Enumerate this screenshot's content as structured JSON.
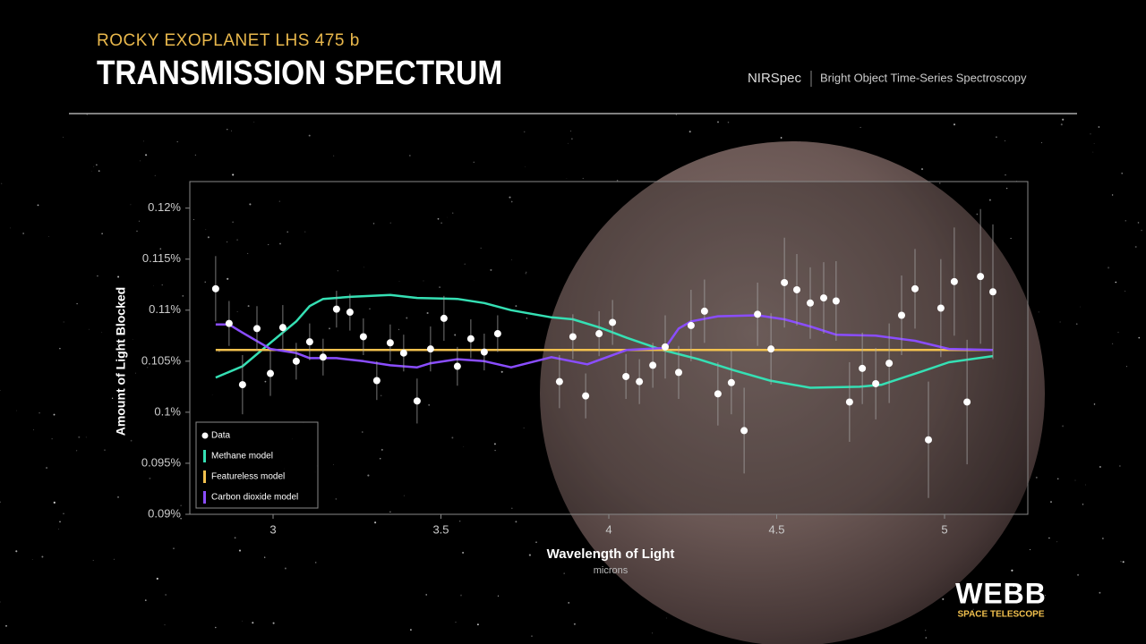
{
  "chart_data": {
    "type": "scatter",
    "subtitle": "ROCKY EXOPLANET LHS 475 b",
    "title": "TRANSMISSION SPECTRUM",
    "instrument": "NIRSpec",
    "mode": "Bright Object Time-Series Spectroscopy",
    "xlabel": "Wavelength of Light",
    "xunit": "microns",
    "ylabel": "Amount of Light Blocked",
    "xlim": [
      2.752,
      5.248
    ],
    "xticks": [
      3,
      3.5,
      4,
      4.5,
      5
    ],
    "ylim": [
      0.09,
      0.1226
    ],
    "yticks": [
      {
        "value": 0.09,
        "label": "0.09%"
      },
      {
        "value": 0.095,
        "label": "0.095%"
      },
      {
        "value": 0.1,
        "label": "0.1%"
      },
      {
        "value": 0.105,
        "label": "0.105%"
      },
      {
        "value": 0.11,
        "label": "0.11%"
      },
      {
        "value": 0.115,
        "label": "0.115%"
      },
      {
        "value": 0.12,
        "label": "0.12%"
      }
    ],
    "legend": "lower left",
    "series": [
      {
        "name": "Data",
        "type": "scatter",
        "color": "#ffffff",
        "x": [
          2.829,
          2.869,
          2.909,
          2.952,
          2.992,
          3.029,
          3.069,
          3.109,
          3.149,
          3.189,
          3.229,
          3.269,
          3.309,
          3.349,
          3.389,
          3.429,
          3.469,
          3.509,
          3.549,
          3.589,
          3.629,
          3.669,
          3.853,
          3.893,
          3.931,
          3.971,
          4.011,
          4.051,
          4.091,
          4.131,
          4.168,
          4.208,
          4.245,
          4.285,
          4.325,
          4.365,
          4.403,
          4.443,
          4.483,
          4.523,
          4.56,
          4.6,
          4.64,
          4.677,
          4.717,
          4.755,
          4.795,
          4.835,
          4.872,
          4.912,
          4.952,
          4.989,
          5.029,
          5.067,
          5.107,
          5.144
        ],
        "values": [
          0.1121,
          0.1087,
          0.1027,
          0.1082,
          0.1038,
          0.1083,
          0.105,
          0.1069,
          0.1054,
          0.1101,
          0.1098,
          0.1074,
          0.1031,
          0.1068,
          0.1058,
          0.1011,
          0.1062,
          0.1092,
          0.1045,
          0.1072,
          0.1059,
          0.1077,
          0.103,
          0.1074,
          0.1016,
          0.1077,
          0.1088,
          0.1035,
          0.103,
          0.1046,
          0.1064,
          0.1039,
          0.1085,
          0.1099,
          0.1018,
          0.1029,
          0.0982,
          0.1096,
          0.1062,
          0.1127,
          0.112,
          0.1107,
          0.1112,
          0.1109,
          0.101,
          0.1043,
          0.1028,
          0.1048,
          0.1095,
          0.1121,
          0.0973,
          0.1102,
          0.1128,
          0.101,
          0.1133,
          0.1118
        ],
        "errors": [
          0.0032,
          0.0022,
          0.0029,
          0.0022,
          0.0022,
          0.0022,
          0.0018,
          0.0018,
          0.0018,
          0.0018,
          0.0018,
          0.0018,
          0.0019,
          0.0018,
          0.0018,
          0.0022,
          0.0022,
          0.0022,
          0.0019,
          0.0019,
          0.0018,
          0.0018,
          0.0026,
          0.0022,
          0.0022,
          0.0022,
          0.0022,
          0.0022,
          0.0022,
          0.0022,
          0.0031,
          0.0026,
          0.0035,
          0.0031,
          0.0031,
          0.0031,
          0.0042,
          0.0031,
          0.0035,
          0.0044,
          0.0035,
          0.0035,
          0.0035,
          0.0039,
          0.0039,
          0.0035,
          0.0035,
          0.0039,
          0.0039,
          0.0039,
          0.0057,
          0.0048,
          0.0053,
          0.0061,
          0.0066,
          0.0066
        ]
      },
      {
        "name": "Methane model",
        "type": "line",
        "color": "#35e0b4",
        "x": [
          2.829,
          2.909,
          2.992,
          3.069,
          3.109,
          3.149,
          3.229,
          3.349,
          3.429,
          3.549,
          3.629,
          3.709,
          3.829,
          3.893,
          3.973,
          4.053,
          4.16,
          4.267,
          4.373,
          4.48,
          4.6,
          4.747,
          4.813,
          4.933,
          5.013,
          5.144
        ],
        "values": [
          0.1034,
          0.1045,
          0.1068,
          0.1089,
          0.1104,
          0.1111,
          0.1113,
          0.1115,
          0.1112,
          0.1111,
          0.1107,
          0.11,
          0.1093,
          0.1091,
          0.1083,
          0.1073,
          0.1061,
          0.1052,
          0.1041,
          0.1031,
          0.1024,
          0.1025,
          0.1027,
          0.104,
          0.1049,
          0.1055
        ]
      },
      {
        "name": "Featureless model",
        "type": "line",
        "color": "#f2c14e",
        "x": [
          2.829,
          5.144
        ],
        "values": [
          0.1061,
          0.1061
        ]
      },
      {
        "name": "Carbon dioxide model",
        "type": "line",
        "color": "#8a4dff",
        "x": [
          2.829,
          2.869,
          2.909,
          2.992,
          3.069,
          3.109,
          3.189,
          3.269,
          3.349,
          3.429,
          3.469,
          3.549,
          3.629,
          3.709,
          3.829,
          3.936,
          4.053,
          4.168,
          4.208,
          4.245,
          4.325,
          4.443,
          4.523,
          4.6,
          4.677,
          4.795,
          4.912,
          5.013,
          5.144
        ],
        "values": [
          0.1086,
          0.1086,
          0.1078,
          0.1062,
          0.1058,
          0.1053,
          0.1053,
          0.105,
          0.1046,
          0.1044,
          0.1048,
          0.1052,
          0.105,
          0.1044,
          0.1054,
          0.1047,
          0.1061,
          0.1063,
          0.1082,
          0.1089,
          0.1094,
          0.1095,
          0.1091,
          0.1084,
          0.1076,
          0.1075,
          0.107,
          0.1062,
          0.1061
        ]
      }
    ]
  },
  "logo": {
    "title": "WEBB",
    "subtitle": "SPACE TELESCOPE"
  }
}
